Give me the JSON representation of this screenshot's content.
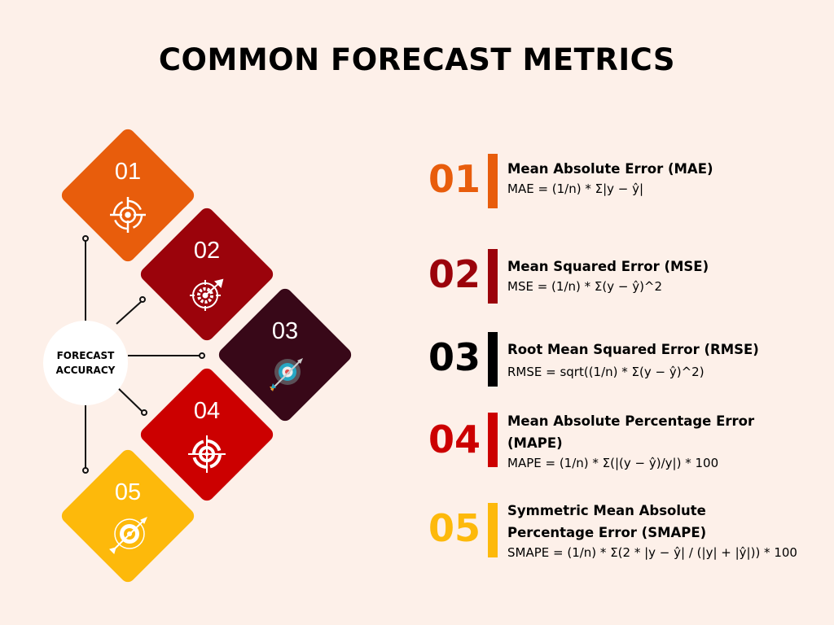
{
  "title": "COMMON FORECAST METRICS",
  "hub": {
    "line1": "FORECAST",
    "line2": "ACCURACY"
  },
  "colors": {
    "background": "#fdf0e9",
    "m1": "#e85d0c",
    "m2": "#9b030b",
    "m3": "#380818",
    "m4": "#cc0000",
    "m5": "#fdb90b"
  },
  "metrics": [
    {
      "number": "01",
      "name": "Mean Absolute Error (MAE)",
      "formula": "MAE = (1/n) * Σ|y − ŷ|",
      "icon": "crosshair-target-icon"
    },
    {
      "number": "02",
      "name": "Mean Squared Error (MSE)",
      "formula": "MSE = (1/n) * Σ(y − ŷ)^2",
      "icon": "target-arrow-gear-icon"
    },
    {
      "number": "03",
      "name": "Root Mean Squared Error (RMSE)",
      "formula": "RMSE = sqrt((1/n) * Σ(y − ŷ)^2)",
      "icon": "bullseye-arrow-icon"
    },
    {
      "number": "04",
      "name": "Mean Absolute Percentage Error (MAPE)",
      "formula": "MAPE = (1/n) * Σ(|(y − ŷ)/y|) * 100",
      "icon": "crosshair-target-icon"
    },
    {
      "number": "05",
      "name": "Symmetric Mean Absolute Percentage Error (SMAPE)",
      "formula": "SMAPE = (1/n) * Σ(2 * |y − ŷ| / (|y| + |ŷ|)) * 100",
      "icon": "bullseye-arrow-icon"
    }
  ]
}
